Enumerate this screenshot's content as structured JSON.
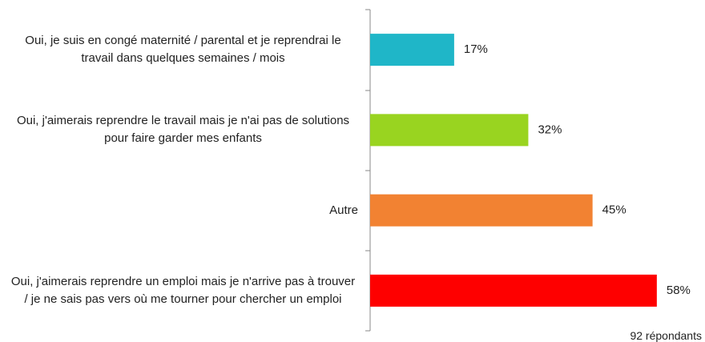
{
  "chart_data": {
    "type": "bar",
    "orientation": "horizontal",
    "categories": [
      "Oui, je suis en congé maternité / parental et je reprendrai le travail dans quelques semaines / mois",
      "Oui, j'aimerais reprendre le travail mais je n'ai pas de solutions pour faire garder mes enfants",
      "Autre",
      "Oui, j'aimerais reprendre un emploi mais je n'arrive pas à trouver / je ne sais pas vers où me tourner pour chercher un emploi"
    ],
    "values": [
      17,
      32,
      45,
      58
    ],
    "value_labels": [
      "17%",
      "32%",
      "45%",
      "58%"
    ],
    "colors": [
      "#1fb6c8",
      "#99d420",
      "#f28232",
      "#fe0000"
    ],
    "xlim": [
      0,
      100
    ],
    "note": "92 répondants"
  }
}
